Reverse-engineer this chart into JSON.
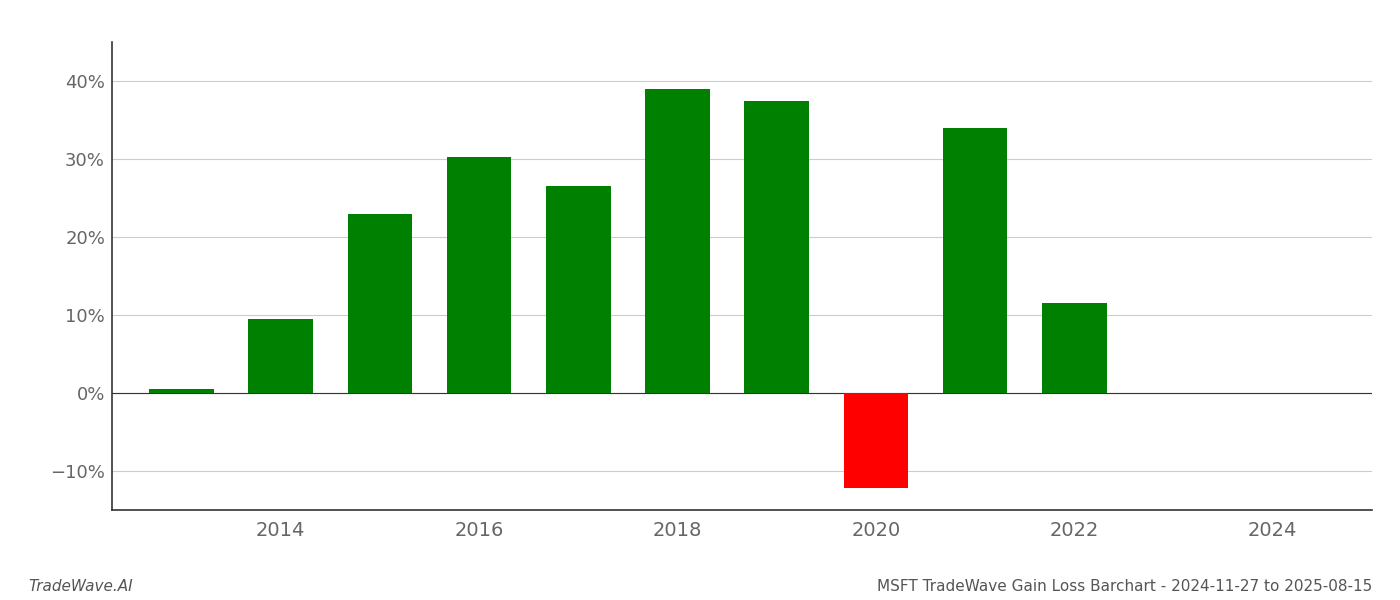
{
  "years": [
    2013,
    2014,
    2015,
    2016,
    2017,
    2018,
    2019,
    2020,
    2021,
    2022,
    2023
  ],
  "values": [
    0.5,
    9.5,
    23.0,
    30.2,
    26.5,
    39.0,
    37.5,
    -12.2,
    34.0,
    11.5,
    0.0
  ],
  "bar_colors": [
    "#008000",
    "#008000",
    "#008000",
    "#008000",
    "#008000",
    "#008000",
    "#008000",
    "#ff0000",
    "#008000",
    "#008000",
    "#008000"
  ],
  "title": "MSFT TradeWave Gain Loss Barchart - 2024-11-27 to 2025-08-15",
  "watermark": "TradeWave.AI",
  "ylim": [
    -15,
    45
  ],
  "yticks": [
    -10,
    0,
    10,
    20,
    30,
    40
  ],
  "xlim": [
    2012.3,
    2025.0
  ],
  "xtick_positions": [
    2014,
    2016,
    2018,
    2020,
    2022,
    2024
  ],
  "xtick_labels": [
    "2014",
    "2016",
    "2018",
    "2020",
    "2022",
    "2024"
  ],
  "background_color": "#ffffff",
  "grid_color": "#cccccc",
  "bar_width": 0.65,
  "spine_color": "#333333",
  "tick_color": "#666666",
  "title_color": "#555555",
  "watermark_color": "#555555"
}
